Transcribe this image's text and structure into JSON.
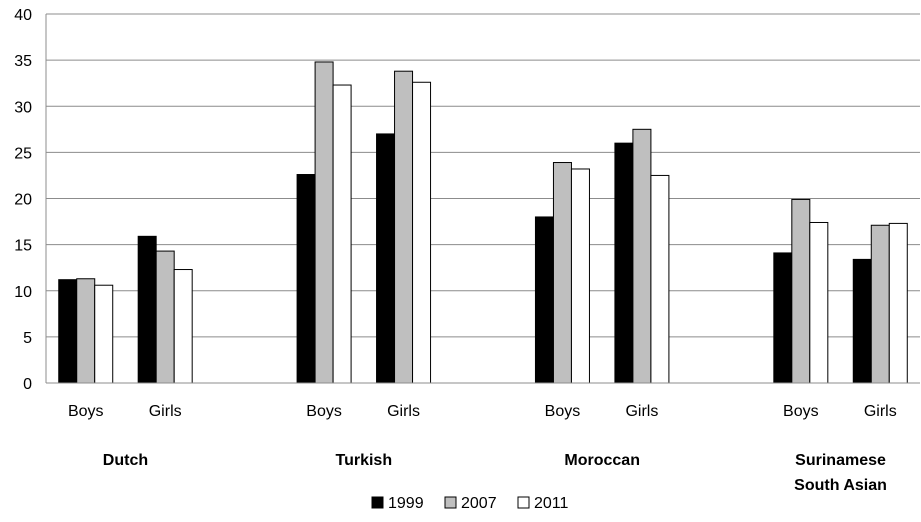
{
  "chart_data": {
    "type": "bar",
    "ylim": [
      0,
      40
    ],
    "yticks": [
      0,
      5,
      10,
      15,
      20,
      25,
      30,
      35,
      40
    ],
    "grid": true,
    "legend_position": "bottom",
    "groups": [
      {
        "name": "Dutch",
        "label_lines": [
          "Dutch"
        ],
        "categories": [
          "Boys",
          "Girls"
        ]
      },
      {
        "name": "Turkish",
        "label_lines": [
          "Turkish"
        ],
        "categories": [
          "Boys",
          "Girls"
        ]
      },
      {
        "name": "Moroccan",
        "label_lines": [
          "Moroccan"
        ],
        "categories": [
          "Boys",
          "Girls"
        ]
      },
      {
        "name": "Surinamese South Asian",
        "label_lines": [
          "Surinamese",
          "South Asian"
        ],
        "categories": [
          "Boys",
          "Girls"
        ]
      }
    ],
    "series": [
      {
        "name": "1999",
        "color": "#000000",
        "values": [
          11.2,
          15.9,
          22.6,
          27.0,
          18.0,
          26.0,
          14.1,
          13.4
        ]
      },
      {
        "name": "2007",
        "color": "#bfbfbf",
        "values": [
          11.3,
          14.3,
          34.8,
          33.8,
          23.9,
          27.5,
          19.9,
          17.1
        ]
      },
      {
        "name": "2011",
        "color": "#ffffff",
        "values": [
          10.6,
          12.3,
          32.3,
          32.6,
          23.2,
          22.5,
          17.4,
          17.3
        ]
      }
    ]
  }
}
